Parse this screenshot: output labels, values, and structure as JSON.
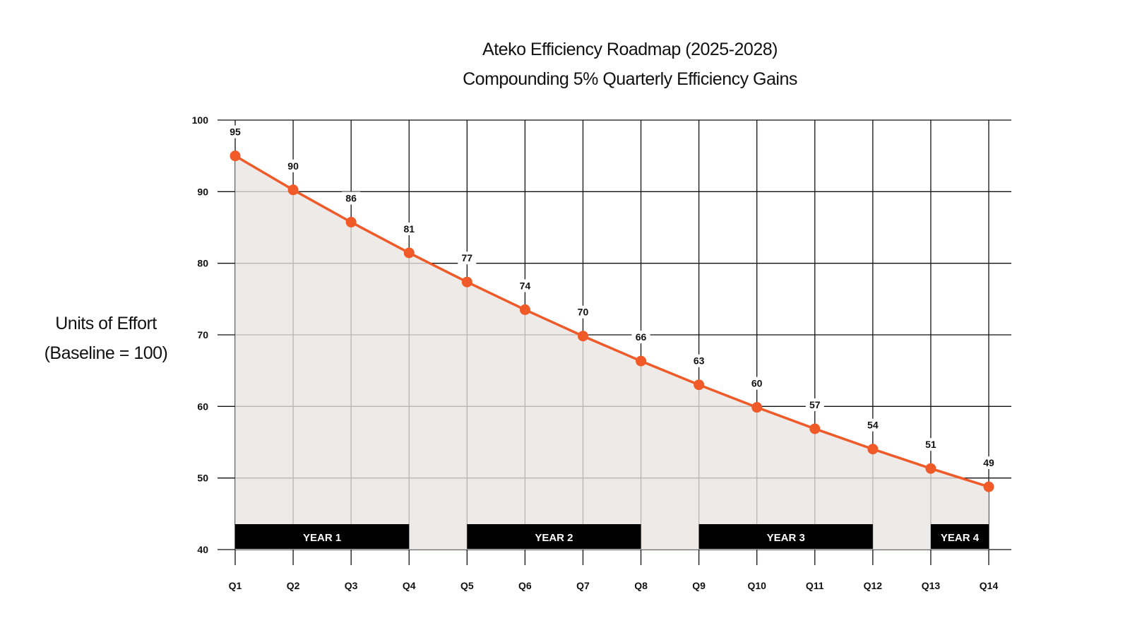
{
  "chart_data": {
    "type": "line",
    "title": "Ateko Efficiency Roadmap (2025-2028)",
    "subtitle": "Compounding 5% Quarterly Efficiency Gains",
    "xlabel": "",
    "ylabel_lines": [
      "Units of Effort",
      "(Baseline = 100)"
    ],
    "categories": [
      "Q1",
      "Q2",
      "Q3",
      "Q4",
      "Q5",
      "Q6",
      "Q7",
      "Q8",
      "Q9",
      "Q10",
      "Q11",
      "Q12",
      "Q13",
      "Q14"
    ],
    "values": [
      95.0,
      90.25,
      85.74,
      81.45,
      77.38,
      73.51,
      69.83,
      66.34,
      63.02,
      59.87,
      56.88,
      54.04,
      51.33,
      48.77
    ],
    "data_labels": [
      "95",
      "90",
      "86",
      "81",
      "77",
      "74",
      "70",
      "66",
      "63",
      "60",
      "57",
      "54",
      "51",
      "49"
    ],
    "ylim": [
      40,
      100
    ],
    "yticks": [
      40,
      50,
      60,
      70,
      80,
      90,
      100
    ],
    "grid": true,
    "area_fill": true,
    "year_bands": [
      {
        "label": "YEAR 1",
        "from": "Q1",
        "to": "Q4"
      },
      {
        "label": "YEAR 2",
        "from": "Q5",
        "to": "Q8"
      },
      {
        "label": "YEAR 3",
        "from": "Q9",
        "to": "Q12"
      },
      {
        "label": "YEAR 4",
        "from": "Q13",
        "to": "Q14"
      }
    ],
    "colors": {
      "line": "#f05a28",
      "fill": "#e8e4e1",
      "grid": "#111111",
      "band": "#000000"
    }
  }
}
